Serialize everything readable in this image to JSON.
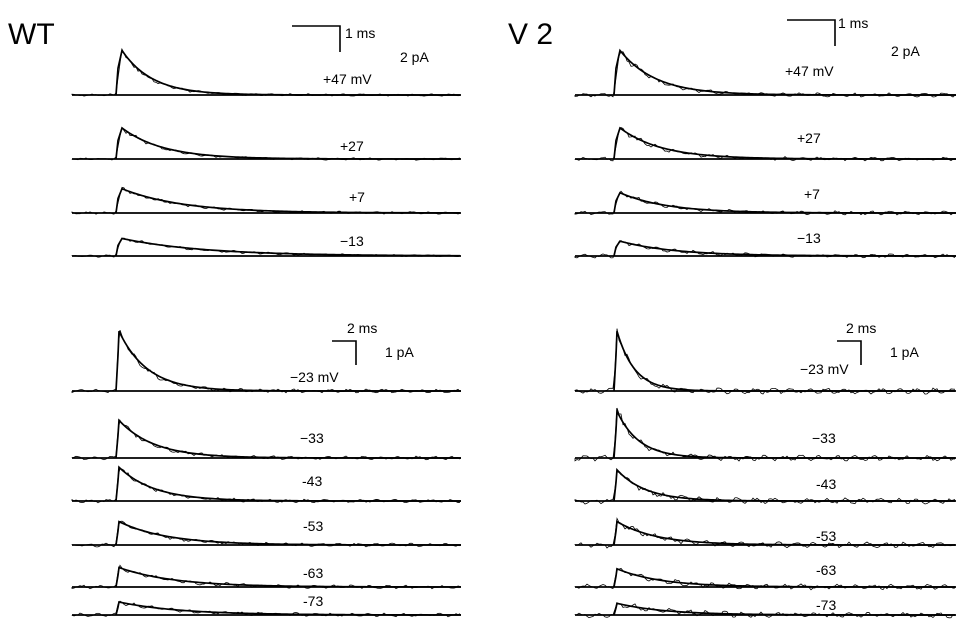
{
  "chart_data": {
    "type": "line",
    "panels": [
      {
        "title": "WT",
        "groups": [
          {
            "scale": {
              "time": "1 ms",
              "current": "2 pA"
            },
            "traces": [
              {
                "label": "+47  mV",
                "amplitude_pA": 3.3,
                "tau_ms": 0.55
              },
              {
                "label": "+27",
                "amplitude_pA": 2.3,
                "tau_ms": 0.75
              },
              {
                "label": "+7",
                "amplitude_pA": 1.8,
                "tau_ms": 1.1
              },
              {
                "label": "−13",
                "amplitude_pA": 1.3,
                "tau_ms": 1.5
              }
            ]
          },
          {
            "scale": {
              "time": "2 ms",
              "current": "1 pA"
            },
            "traces": [
              {
                "label": "−23 mV",
                "amplitude_pA": 2.3,
                "tau_ms": 1.3
              },
              {
                "label": "−33",
                "amplitude_pA": 1.45,
                "tau_ms": 1.6
              },
              {
                "label": "-43",
                "amplitude_pA": 1.3,
                "tau_ms": 1.6
              },
              {
                "label": "-53",
                "amplitude_pA": 0.9,
                "tau_ms": 2.2
              },
              {
                "label": "-63",
                "amplitude_pA": 0.75,
                "tau_ms": 2.5
              },
              {
                "label": "-73",
                "amplitude_pA": 0.5,
                "tau_ms": 2.8
              }
            ]
          }
        ]
      },
      {
        "title": "V 2",
        "groups": [
          {
            "scale": {
              "time": "1 ms",
              "current": "2 pA"
            },
            "traces": [
              {
                "label": "+47  mV",
                "amplitude_pA": 3.3,
                "tau_ms": 0.65
              },
              {
                "label": "+27",
                "amplitude_pA": 2.3,
                "tau_ms": 0.75
              },
              {
                "label": "+7",
                "amplitude_pA": 1.5,
                "tau_ms": 0.85
              },
              {
                "label": "−13",
                "amplitude_pA": 1.1,
                "tau_ms": 1.0
              }
            ]
          },
          {
            "scale": {
              "time": "2 ms",
              "current": "1 pA"
            },
            "traces": [
              {
                "label": "−23 mV",
                "amplitude_pA": 2.3,
                "tau_ms": 0.8
              },
              {
                "label": "−33",
                "amplitude_pA": 1.8,
                "tau_ms": 1.0
              },
              {
                "label": "-43",
                "amplitude_pA": 1.2,
                "tau_ms": 1.3
              },
              {
                "label": "-53",
                "amplitude_pA": 0.9,
                "tau_ms": 1.8
              },
              {
                "label": "-63",
                "amplitude_pA": 0.7,
                "tau_ms": 2.0
              },
              {
                "label": "-73",
                "amplitude_pA": 0.45,
                "tau_ms": 2.2
              }
            ]
          }
        ]
      }
    ]
  }
}
